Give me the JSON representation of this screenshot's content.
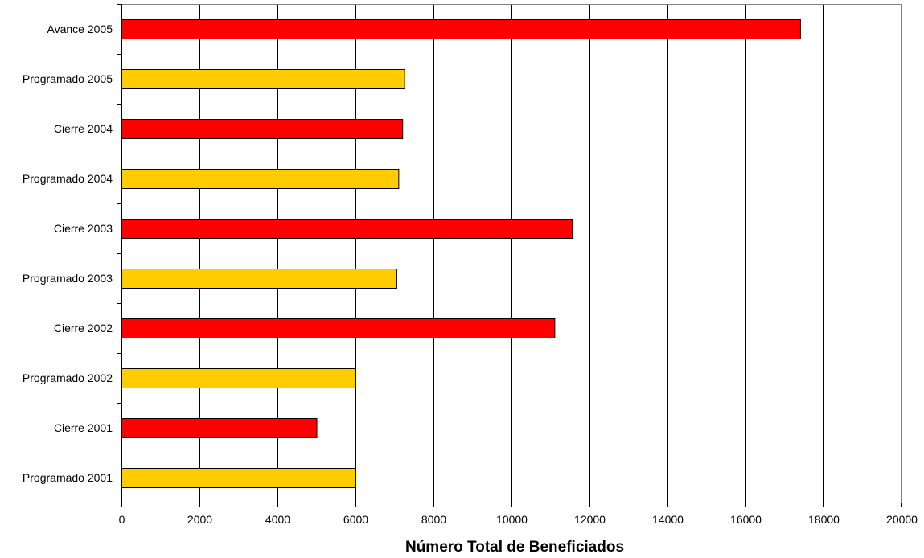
{
  "chart_data": {
    "type": "bar",
    "orientation": "horizontal",
    "title": "",
    "xlabel": "Número Total de Beneficiados",
    "ylabel": "",
    "xlim": [
      0,
      20000
    ],
    "x_ticks": [
      "0",
      "2000",
      "4000",
      "6000",
      "8000",
      "10000",
      "12000",
      "14000",
      "16000",
      "18000",
      "20000"
    ],
    "grid": "vertical",
    "legend": "none",
    "categories": [
      "Programado 2001",
      "Cierre 2001",
      "Programado 2002",
      "Cierre 2002",
      "Programado 2003",
      "Cierre 2003",
      "Programado 2004",
      "Cierre 2004",
      "Programado 2005",
      "Avance 2005"
    ],
    "values": [
      6000,
      5000,
      6000,
      11100,
      7050,
      11550,
      7100,
      7200,
      7250,
      17400
    ],
    "bar_colors": [
      "#FFCC00",
      "#FF0000",
      "#FFCC00",
      "#FF0000",
      "#FFCC00",
      "#FF0000",
      "#FFCC00",
      "#FF0000",
      "#FFCC00",
      "#FF0000"
    ]
  }
}
